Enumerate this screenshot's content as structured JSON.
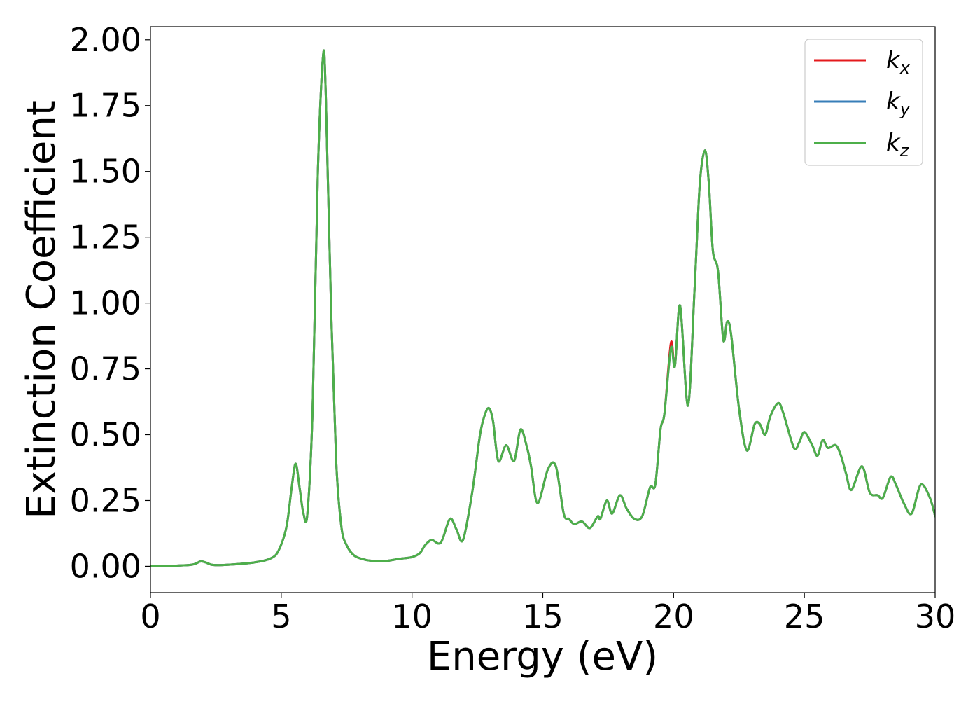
{
  "chart_data": {
    "type": "line",
    "title": "",
    "xlabel": "Energy (eV)",
    "ylabel": "Extinction Coefficient",
    "xlim": [
      0,
      30
    ],
    "ylim": [
      -0.1,
      2.05
    ],
    "xticks": [
      0,
      5,
      10,
      15,
      20,
      25,
      30
    ],
    "xtick_labels": [
      "0",
      "5",
      "10",
      "15",
      "20",
      "25",
      "30"
    ],
    "yticks": [
      0.0,
      0.25,
      0.5,
      0.75,
      1.0,
      1.25,
      1.5,
      1.75,
      2.0
    ],
    "ytick_labels": [
      "0.00",
      "0.25",
      "0.50",
      "0.75",
      "1.00",
      "1.25",
      "1.50",
      "1.75",
      "2.00"
    ],
    "grid": false,
    "legend_position": "top-right",
    "series": [
      {
        "name": "k",
        "subscript": "x",
        "color": "#e41a1c",
        "x": [
          0,
          1.5,
          1.9,
          2.1,
          2.4,
          3,
          4,
          4.6,
          4.9,
          5.2,
          5.4,
          5.55,
          5.7,
          5.85,
          6.0,
          6.2,
          6.4,
          6.6,
          6.7,
          6.9,
          7.1,
          7.3,
          7.5,
          7.8,
          8.2,
          8.6,
          9.0,
          9.5,
          10.0,
          10.3,
          10.5,
          10.75,
          11.1,
          11.45,
          11.7,
          11.95,
          12.3,
          12.6,
          12.8,
          12.95,
          13.1,
          13.3,
          13.6,
          13.9,
          14.15,
          14.4,
          14.55,
          14.8,
          15.2,
          15.5,
          15.8,
          16.0,
          16.2,
          16.5,
          16.8,
          17.1,
          17.2,
          17.45,
          17.65,
          17.95,
          18.2,
          18.5,
          18.8,
          19.1,
          19.3,
          19.5,
          19.65,
          19.9,
          20.05,
          20.25,
          20.55,
          20.8,
          21.0,
          21.2,
          21.35,
          21.5,
          21.7,
          21.9,
          22.05,
          22.2,
          22.5,
          22.8,
          23.1,
          23.3,
          23.5,
          23.7,
          24.0,
          24.2,
          24.6,
          24.8,
          25.0,
          25.3,
          25.5,
          25.7,
          25.9,
          26.2,
          26.4,
          26.6,
          26.8,
          27.2,
          27.5,
          27.8,
          28.0,
          28.3,
          28.5,
          28.8,
          29.1,
          29.45,
          29.8,
          30.0
        ],
        "y": [
          0.0,
          0.005,
          0.018,
          0.015,
          0.005,
          0.006,
          0.015,
          0.03,
          0.06,
          0.15,
          0.3,
          0.39,
          0.3,
          0.2,
          0.2,
          0.6,
          1.5,
          1.94,
          1.8,
          1.0,
          0.4,
          0.15,
          0.08,
          0.04,
          0.025,
          0.02,
          0.02,
          0.028,
          0.035,
          0.05,
          0.08,
          0.1,
          0.09,
          0.18,
          0.14,
          0.1,
          0.28,
          0.5,
          0.58,
          0.6,
          0.55,
          0.4,
          0.46,
          0.4,
          0.52,
          0.45,
          0.38,
          0.24,
          0.37,
          0.38,
          0.2,
          0.18,
          0.16,
          0.17,
          0.145,
          0.19,
          0.18,
          0.25,
          0.2,
          0.27,
          0.22,
          0.18,
          0.19,
          0.3,
          0.31,
          0.52,
          0.58,
          0.85,
          0.76,
          0.99,
          0.61,
          1.05,
          1.45,
          1.58,
          1.45,
          1.2,
          1.12,
          0.86,
          0.93,
          0.88,
          0.6,
          0.44,
          0.54,
          0.54,
          0.5,
          0.57,
          0.62,
          0.58,
          0.45,
          0.47,
          0.51,
          0.46,
          0.42,
          0.48,
          0.45,
          0.46,
          0.42,
          0.35,
          0.29,
          0.38,
          0.28,
          0.27,
          0.26,
          0.34,
          0.31,
          0.24,
          0.2,
          0.31,
          0.26,
          0.19
        ]
      },
      {
        "name": "k",
        "subscript": "y",
        "color": "#377eb8",
        "x": [
          0,
          1.5,
          1.9,
          2.1,
          2.4,
          3,
          4,
          4.6,
          4.9,
          5.2,
          5.4,
          5.55,
          5.7,
          5.85,
          6.0,
          6.2,
          6.4,
          6.6,
          6.7,
          6.9,
          7.1,
          7.3,
          7.5,
          7.8,
          8.2,
          8.6,
          9.0,
          9.5,
          10.0,
          10.3,
          10.5,
          10.75,
          11.1,
          11.45,
          11.7,
          11.95,
          12.3,
          12.6,
          12.8,
          12.95,
          13.1,
          13.3,
          13.6,
          13.9,
          14.15,
          14.4,
          14.55,
          14.8,
          15.2,
          15.5,
          15.8,
          16.0,
          16.2,
          16.5,
          16.8,
          17.1,
          17.2,
          17.45,
          17.65,
          17.95,
          18.2,
          18.5,
          18.8,
          19.1,
          19.3,
          19.5,
          19.65,
          19.9,
          20.05,
          20.25,
          20.55,
          20.8,
          21.0,
          21.2,
          21.35,
          21.5,
          21.7,
          21.9,
          22.05,
          22.2,
          22.5,
          22.8,
          23.1,
          23.3,
          23.5,
          23.7,
          24.0,
          24.2,
          24.6,
          24.8,
          25.0,
          25.3,
          25.5,
          25.7,
          25.9,
          26.2,
          26.4,
          26.6,
          26.8,
          27.2,
          27.5,
          27.8,
          28.0,
          28.3,
          28.5,
          28.8,
          29.1,
          29.45,
          29.8,
          30.0
        ],
        "y": [
          0.0,
          0.005,
          0.018,
          0.015,
          0.005,
          0.006,
          0.015,
          0.03,
          0.06,
          0.15,
          0.3,
          0.39,
          0.3,
          0.2,
          0.2,
          0.6,
          1.5,
          1.94,
          1.8,
          1.0,
          0.4,
          0.15,
          0.08,
          0.04,
          0.025,
          0.02,
          0.02,
          0.028,
          0.035,
          0.05,
          0.08,
          0.1,
          0.09,
          0.18,
          0.14,
          0.1,
          0.28,
          0.5,
          0.58,
          0.6,
          0.55,
          0.4,
          0.46,
          0.4,
          0.52,
          0.45,
          0.38,
          0.24,
          0.37,
          0.38,
          0.2,
          0.18,
          0.16,
          0.17,
          0.145,
          0.19,
          0.18,
          0.25,
          0.2,
          0.27,
          0.22,
          0.18,
          0.19,
          0.3,
          0.31,
          0.52,
          0.58,
          0.83,
          0.76,
          0.99,
          0.61,
          1.05,
          1.45,
          1.58,
          1.45,
          1.2,
          1.12,
          0.86,
          0.93,
          0.88,
          0.6,
          0.44,
          0.54,
          0.54,
          0.5,
          0.57,
          0.62,
          0.58,
          0.45,
          0.47,
          0.51,
          0.46,
          0.42,
          0.48,
          0.45,
          0.46,
          0.42,
          0.35,
          0.29,
          0.38,
          0.28,
          0.27,
          0.26,
          0.34,
          0.31,
          0.24,
          0.2,
          0.31,
          0.26,
          0.19
        ]
      },
      {
        "name": "k",
        "subscript": "z",
        "color": "#4daf4a",
        "x": [
          0,
          1.5,
          1.9,
          2.1,
          2.4,
          3,
          4,
          4.6,
          4.9,
          5.2,
          5.4,
          5.55,
          5.7,
          5.85,
          6.0,
          6.2,
          6.4,
          6.6,
          6.7,
          6.9,
          7.1,
          7.3,
          7.5,
          7.8,
          8.2,
          8.6,
          9.0,
          9.5,
          10.0,
          10.3,
          10.5,
          10.75,
          11.1,
          11.45,
          11.7,
          11.95,
          12.3,
          12.6,
          12.8,
          12.95,
          13.1,
          13.3,
          13.6,
          13.9,
          14.15,
          14.4,
          14.55,
          14.8,
          15.2,
          15.5,
          15.8,
          16.0,
          16.2,
          16.5,
          16.8,
          17.1,
          17.2,
          17.45,
          17.65,
          17.95,
          18.2,
          18.5,
          18.8,
          19.1,
          19.3,
          19.5,
          19.65,
          19.9,
          20.05,
          20.25,
          20.55,
          20.8,
          21.0,
          21.2,
          21.35,
          21.5,
          21.7,
          21.9,
          22.05,
          22.2,
          22.5,
          22.8,
          23.1,
          23.3,
          23.5,
          23.7,
          24.0,
          24.2,
          24.6,
          24.8,
          25.0,
          25.3,
          25.5,
          25.7,
          25.9,
          26.2,
          26.4,
          26.6,
          26.8,
          27.2,
          27.5,
          27.8,
          28.0,
          28.3,
          28.5,
          28.8,
          29.1,
          29.45,
          29.8,
          30.0
        ],
        "y": [
          0.0,
          0.005,
          0.018,
          0.015,
          0.005,
          0.006,
          0.015,
          0.03,
          0.06,
          0.15,
          0.3,
          0.39,
          0.3,
          0.2,
          0.2,
          0.6,
          1.5,
          1.94,
          1.8,
          1.0,
          0.4,
          0.15,
          0.08,
          0.04,
          0.025,
          0.02,
          0.02,
          0.028,
          0.035,
          0.05,
          0.08,
          0.1,
          0.09,
          0.18,
          0.14,
          0.1,
          0.28,
          0.5,
          0.58,
          0.6,
          0.55,
          0.4,
          0.46,
          0.4,
          0.52,
          0.45,
          0.38,
          0.24,
          0.37,
          0.38,
          0.2,
          0.18,
          0.16,
          0.17,
          0.145,
          0.19,
          0.18,
          0.25,
          0.2,
          0.27,
          0.22,
          0.18,
          0.19,
          0.3,
          0.31,
          0.52,
          0.58,
          0.83,
          0.76,
          0.99,
          0.61,
          1.05,
          1.45,
          1.58,
          1.45,
          1.2,
          1.12,
          0.86,
          0.93,
          0.88,
          0.6,
          0.44,
          0.54,
          0.54,
          0.5,
          0.57,
          0.62,
          0.58,
          0.45,
          0.47,
          0.51,
          0.46,
          0.42,
          0.48,
          0.45,
          0.46,
          0.42,
          0.35,
          0.29,
          0.38,
          0.28,
          0.27,
          0.26,
          0.34,
          0.31,
          0.24,
          0.2,
          0.31,
          0.26,
          0.19
        ]
      }
    ]
  }
}
